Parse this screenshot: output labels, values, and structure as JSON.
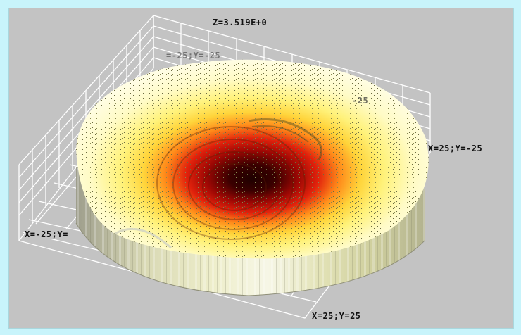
{
  "plot": {
    "title": "Z=3.519E+0",
    "corners": {
      "right": "X=25;Y=-25",
      "bottom": "X=25;Y=25",
      "left": "X=-25;Y=",
      "back_partial": "=-25;Y=-25",
      "mid_partial": "-25"
    },
    "colors": {
      "background": "#c8f4fb",
      "panel": "#c3c3c3",
      "grid": "#ffffff",
      "surface_outer": "#fffbd0",
      "surface_mid": "#ffe84a",
      "surface_warm": "#ff8a1a",
      "surface_hot": "#d8120a",
      "surface_core": "#2a0000",
      "wall": "#cfcfa6"
    }
  }
}
